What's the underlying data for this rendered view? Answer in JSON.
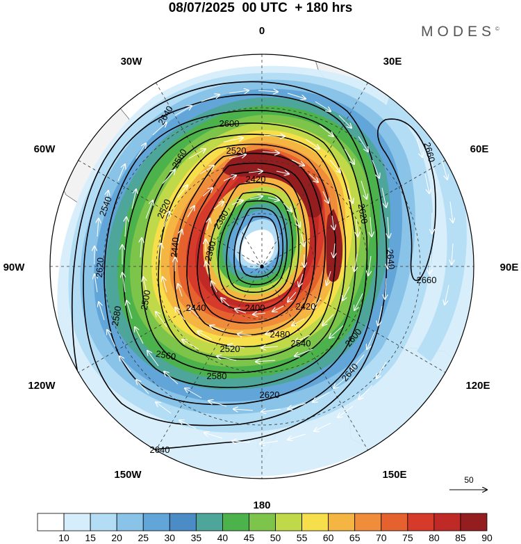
{
  "header": {
    "title": "08/07/2025  00 UTC  + 180 hrs",
    "brand": "MODES",
    "brand_mark": "©"
  },
  "map": {
    "projection": "polar-stereographic-south",
    "longitude_labels": [
      "0",
      "30E",
      "60E",
      "90E",
      "120E",
      "150E",
      "180",
      "150W",
      "120W",
      "90W",
      "60W",
      "30W"
    ],
    "contour_labels": [
      "2640",
      "2600",
      "2660",
      "2560",
      "2520",
      "2420",
      "2380",
      "2360",
      "2540",
      "2520",
      "2620",
      "2620",
      "2640",
      "2660",
      "2440",
      "2500",
      "2440",
      "2400",
      "2420",
      "2480",
      "2580",
      "2540",
      "2520",
      "2560",
      "2580",
      "2620",
      "2640",
      "2640",
      "2600"
    ],
    "reference_vector": "50",
    "colors": {
      "land": "#f2f2f2",
      "contour": "#000000",
      "vector": "#ffffff"
    }
  },
  "colorbar": {
    "ticks": [
      "10",
      "15",
      "20",
      "25",
      "30",
      "35",
      "40",
      "45",
      "50",
      "55",
      "60",
      "65",
      "70",
      "75",
      "80",
      "85",
      "90"
    ],
    "colors": [
      "#ffffff",
      "#d6eefb",
      "#b3ddf4",
      "#8ac3e8",
      "#62a6d9",
      "#4b8cc6",
      "#4ea59a",
      "#4cb24c",
      "#7dc44a",
      "#bfd948",
      "#f6df4a",
      "#f5b542",
      "#f08d3b",
      "#e5622f",
      "#d63a2b",
      "#c02a26",
      "#931d1f"
    ]
  }
}
